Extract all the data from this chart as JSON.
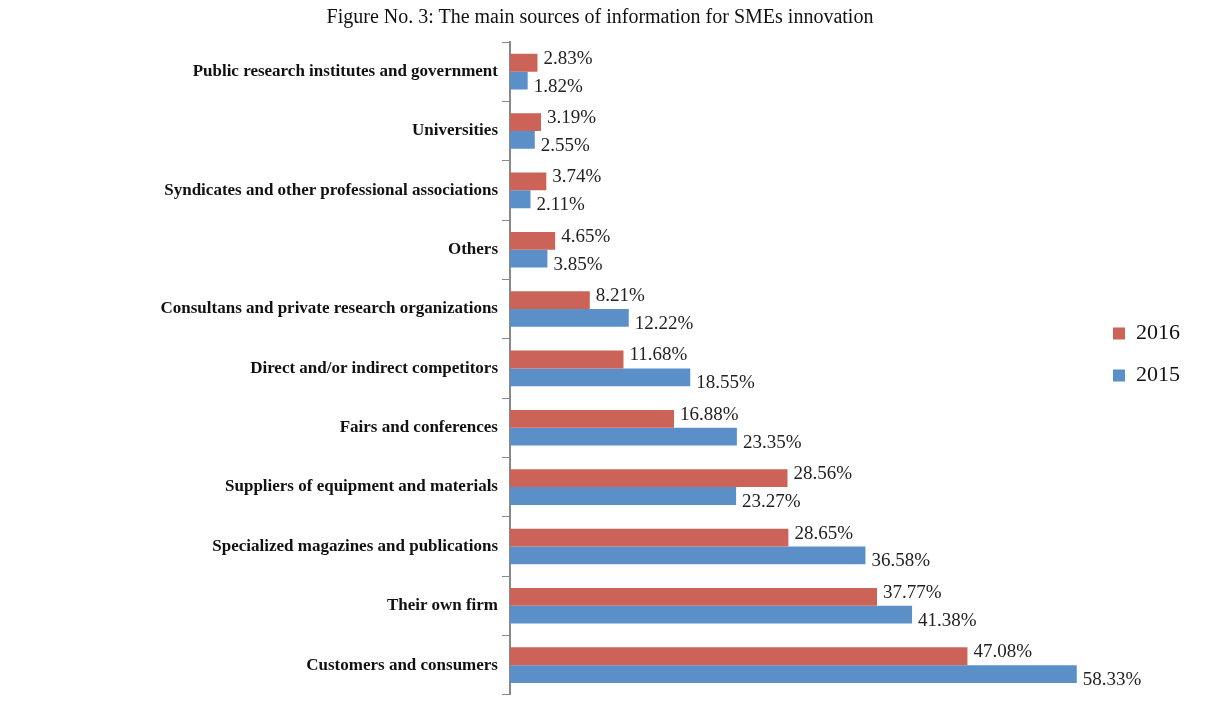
{
  "chart_data": {
    "type": "bar",
    "orientation": "horizontal",
    "title": "Figure No. 3: The main sources of information for SMEs innovation",
    "categories": [
      "Public research institutes and government",
      "Universities",
      "Syndicates and other professional associations",
      "Others",
      "Consultans and private research organizations",
      "Direct and/or indirect competitors",
      "Fairs and conferences",
      "Suppliers of equipment and materials",
      "Specialized magazines and publications",
      "Their own firm",
      "Customers and consumers"
    ],
    "series": [
      {
        "name": "2016",
        "color": "#cc6359",
        "values": [
          2.83,
          3.19,
          3.74,
          4.65,
          8.21,
          11.68,
          16.88,
          28.56,
          28.65,
          37.77,
          47.08
        ],
        "value_labels": [
          "2.83%",
          "3.19%",
          "3.74%",
          "4.65%",
          "8.21%",
          "11.68%",
          "16.88%",
          "28.56%",
          "28.65%",
          "37.77%",
          "47.08%"
        ]
      },
      {
        "name": "2015",
        "color": "#5b8fc7",
        "values": [
          1.82,
          2.55,
          2.11,
          3.85,
          12.22,
          18.55,
          23.35,
          23.27,
          36.58,
          41.38,
          58.33
        ],
        "value_labels": [
          "1.82%",
          "2.55%",
          "2.11%",
          "3.85%",
          "12.22%",
          "18.55%",
          "23.35%",
          "23.27%",
          "36.58%",
          "41.38%",
          "58.33%"
        ]
      }
    ],
    "legend": "right"
  }
}
